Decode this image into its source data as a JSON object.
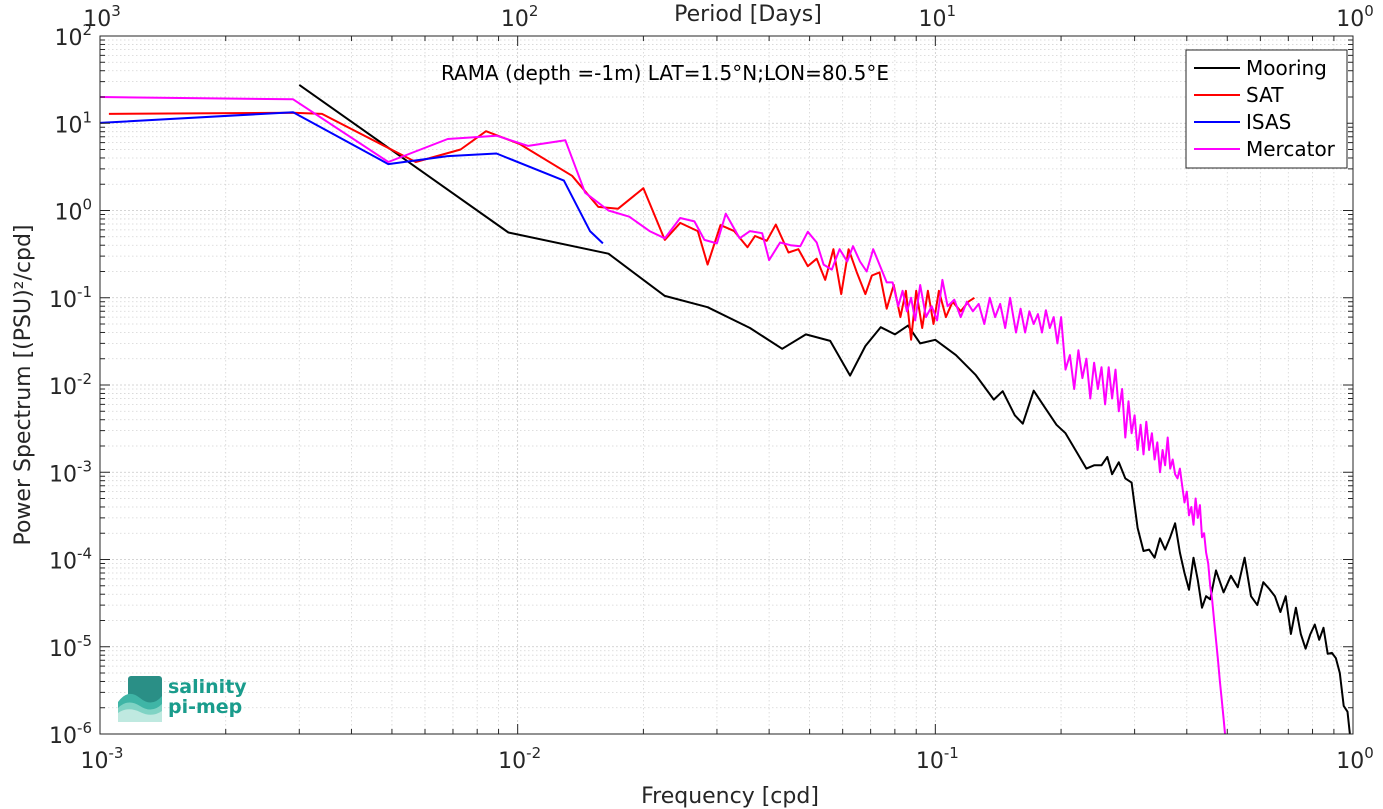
{
  "chart_data": {
    "type": "line",
    "title": "",
    "annotation": "RAMA (depth =-1m) LAT=1.5°N;LON=80.5°E",
    "xlabel": "Frequency [cpd]",
    "ylabel": "Power Spectrum [(PSU)²/cpd]",
    "top_xlabel": "Period [Days]",
    "x_scale": "log",
    "y_scale": "log",
    "xlim": [
      0.001,
      1
    ],
    "ylim": [
      1e-06,
      100
    ],
    "grid": true,
    "minor_grid": true,
    "legend_position": "top-right",
    "x_ticks": [
      {
        "v": 0.001,
        "base": "10",
        "exp": "-3"
      },
      {
        "v": 0.01,
        "base": "10",
        "exp": "-2"
      },
      {
        "v": 0.1,
        "base": "10",
        "exp": "-1"
      },
      {
        "v": 1,
        "base": "10",
        "exp": "0"
      }
    ],
    "top_ticks": [
      {
        "v": 0.001,
        "base": "10",
        "exp": "3"
      },
      {
        "v": 0.01,
        "base": "10",
        "exp": "2"
      },
      {
        "v": 0.1,
        "base": "10",
        "exp": "1"
      },
      {
        "v": 1,
        "base": "10",
        "exp": "0"
      }
    ],
    "y_ticks": [
      {
        "v": 100,
        "base": "10",
        "exp": "2"
      },
      {
        "v": 10,
        "base": "10",
        "exp": "1"
      },
      {
        "v": 1,
        "base": "10",
        "exp": "0"
      },
      {
        "v": 0.1,
        "base": "10",
        "exp": "-1"
      },
      {
        "v": 0.01,
        "base": "10",
        "exp": "-2"
      },
      {
        "v": 0.001,
        "base": "10",
        "exp": "-3"
      },
      {
        "v": 0.0001,
        "base": "10",
        "exp": "-4"
      },
      {
        "v": 1e-05,
        "base": "10",
        "exp": "-5"
      },
      {
        "v": 1e-06,
        "base": "10",
        "exp": "-6"
      }
    ],
    "series": [
      {
        "name": "Mooring",
        "color": "#000000",
        "points": [
          [
            0.003,
            27.5
          ],
          [
            0.0095,
            0.56
          ],
          [
            0.0165,
            0.32
          ],
          [
            0.0225,
            0.105
          ],
          [
            0.0285,
            0.078
          ],
          [
            0.036,
            0.045
          ],
          [
            0.043,
            0.026
          ],
          [
            0.049,
            0.038
          ],
          [
            0.056,
            0.032
          ],
          [
            0.0625,
            0.0128
          ],
          [
            0.068,
            0.028
          ],
          [
            0.074,
            0.046
          ],
          [
            0.08,
            0.038
          ],
          [
            0.086,
            0.048
          ],
          [
            0.092,
            0.03
          ],
          [
            0.1,
            0.033
          ],
          [
            0.112,
            0.022
          ],
          [
            0.125,
            0.013
          ],
          [
            0.138,
            0.0068
          ],
          [
            0.145,
            0.0085
          ],
          [
            0.155,
            0.0045
          ],
          [
            0.162,
            0.0036
          ],
          [
            0.172,
            0.0086
          ],
          [
            0.183,
            0.0055
          ],
          [
            0.195,
            0.0035
          ],
          [
            0.205,
            0.0028
          ],
          [
            0.218,
            0.0017
          ],
          [
            0.23,
            0.0011
          ],
          [
            0.24,
            0.0012
          ],
          [
            0.25,
            0.0012
          ],
          [
            0.258,
            0.0015
          ],
          [
            0.265,
            0.00095
          ],
          [
            0.275,
            0.0013
          ],
          [
            0.285,
            0.00085
          ],
          [
            0.295,
            0.00076
          ],
          [
            0.305,
            0.00023
          ],
          [
            0.315,
            0.000125
          ],
          [
            0.325,
            0.00013
          ],
          [
            0.335,
            0.000105
          ],
          [
            0.345,
            0.000175
          ],
          [
            0.355,
            0.00013
          ],
          [
            0.365,
            0.00018
          ],
          [
            0.375,
            0.00026
          ],
          [
            0.385,
            0.00012
          ],
          [
            0.395,
            7e-05
          ],
          [
            0.405,
            4.5e-05
          ],
          [
            0.415,
            0.000105
          ],
          [
            0.425,
            5.8e-05
          ],
          [
            0.435,
            2.8e-05
          ],
          [
            0.445,
            3.8e-05
          ],
          [
            0.455,
            3.5e-05
          ],
          [
            0.47,
            7.5e-05
          ],
          [
            0.49,
            4.2e-05
          ],
          [
            0.51,
            6.5e-05
          ],
          [
            0.53,
            4.8e-05
          ],
          [
            0.55,
            0.000105
          ],
          [
            0.57,
            3.8e-05
          ],
          [
            0.59,
            3e-05
          ],
          [
            0.61,
            5.5e-05
          ],
          [
            0.63,
            4.6e-05
          ],
          [
            0.65,
            3.8e-05
          ],
          [
            0.67,
            2.5e-05
          ],
          [
            0.69,
            3.8e-05
          ],
          [
            0.71,
            1.4e-05
          ],
          [
            0.73,
            2.8e-05
          ],
          [
            0.75,
            1.4e-05
          ],
          [
            0.77,
            9.5e-06
          ],
          [
            0.79,
            1.38e-05
          ],
          [
            0.81,
            1.8e-05
          ],
          [
            0.83,
            1.2e-05
          ],
          [
            0.85,
            1.65e-05
          ],
          [
            0.87,
            8.3e-06
          ],
          [
            0.89,
            8.5e-06
          ],
          [
            0.91,
            7.4e-06
          ],
          [
            0.93,
            5e-06
          ],
          [
            0.95,
            2.1e-06
          ],
          [
            0.97,
            1.8e-06
          ],
          [
            0.985,
            9e-07
          ]
        ]
      },
      {
        "name": "SAT",
        "color": "#ff0000",
        "points": [
          [
            0.00105,
            12.8
          ],
          [
            0.0029,
            13.2
          ],
          [
            0.0034,
            12.8
          ],
          [
            0.0049,
            5.2
          ],
          [
            0.0057,
            3.6
          ],
          [
            0.0073,
            5.0
          ],
          [
            0.0084,
            8.1
          ],
          [
            0.0101,
            5.8
          ],
          [
            0.0135,
            2.5
          ],
          [
            0.0156,
            1.1
          ],
          [
            0.0174,
            1.05
          ],
          [
            0.02,
            1.8
          ],
          [
            0.0225,
            0.46
          ],
          [
            0.0245,
            0.72
          ],
          [
            0.027,
            0.58
          ],
          [
            0.0285,
            0.24
          ],
          [
            0.0306,
            0.68
          ],
          [
            0.033,
            0.58
          ],
          [
            0.0355,
            0.38
          ],
          [
            0.037,
            0.51
          ],
          [
            0.0395,
            0.45
          ],
          [
            0.0415,
            0.69
          ],
          [
            0.0445,
            0.33
          ],
          [
            0.047,
            0.36
          ],
          [
            0.0495,
            0.23
          ],
          [
            0.052,
            0.28
          ],
          [
            0.0545,
            0.16
          ],
          [
            0.057,
            0.36
          ],
          [
            0.0595,
            0.11
          ],
          [
            0.062,
            0.36
          ],
          [
            0.065,
            0.19
          ],
          [
            0.068,
            0.11
          ],
          [
            0.0705,
            0.18
          ],
          [
            0.0735,
            0.195
          ],
          [
            0.0765,
            0.075
          ],
          [
            0.0795,
            0.14
          ],
          [
            0.0825,
            0.06
          ],
          [
            0.085,
            0.12
          ],
          [
            0.0875,
            0.033
          ],
          [
            0.09,
            0.12
          ],
          [
            0.093,
            0.045
          ],
          [
            0.096,
            0.12
          ],
          [
            0.099,
            0.05
          ],
          [
            0.102,
            0.12
          ],
          [
            0.106,
            0.06
          ],
          [
            0.11,
            0.09
          ],
          [
            0.115,
            0.07
          ],
          [
            0.12,
            0.09
          ],
          [
            0.124,
            0.1
          ]
        ]
      },
      {
        "name": "ISAS",
        "color": "#0000ff",
        "points": [
          [
            0.001,
            10.1
          ],
          [
            0.0029,
            13.4
          ],
          [
            0.0049,
            3.4
          ],
          [
            0.0068,
            4.2
          ],
          [
            0.0089,
            4.5
          ],
          [
            0.0129,
            2.2
          ],
          [
            0.0149,
            0.58
          ],
          [
            0.016,
            0.42
          ]
        ]
      },
      {
        "name": "Mercator",
        "color": "#ff00ff",
        "points": [
          [
            0.001,
            20.0
          ],
          [
            0.0029,
            18.8
          ],
          [
            0.0049,
            3.6
          ],
          [
            0.0068,
            6.6
          ],
          [
            0.0089,
            7.2
          ],
          [
            0.0106,
            5.5
          ],
          [
            0.013,
            6.4
          ],
          [
            0.0145,
            1.6
          ],
          [
            0.0165,
            1.0
          ],
          [
            0.0185,
            0.85
          ],
          [
            0.0207,
            0.58
          ],
          [
            0.0225,
            0.48
          ],
          [
            0.0245,
            0.82
          ],
          [
            0.0265,
            0.75
          ],
          [
            0.028,
            0.46
          ],
          [
            0.03,
            0.42
          ],
          [
            0.0315,
            0.92
          ],
          [
            0.034,
            0.48
          ],
          [
            0.036,
            0.58
          ],
          [
            0.0385,
            0.55
          ],
          [
            0.04,
            0.27
          ],
          [
            0.0425,
            0.43
          ],
          [
            0.045,
            0.4
          ],
          [
            0.0475,
            0.39
          ],
          [
            0.0495,
            0.57
          ],
          [
            0.052,
            0.43
          ],
          [
            0.054,
            0.24
          ],
          [
            0.0565,
            0.21
          ],
          [
            0.059,
            0.36
          ],
          [
            0.0615,
            0.26
          ],
          [
            0.0635,
            0.39
          ],
          [
            0.066,
            0.26
          ],
          [
            0.0685,
            0.2
          ],
          [
            0.071,
            0.36
          ],
          [
            0.0735,
            0.24
          ],
          [
            0.0765,
            0.15
          ],
          [
            0.079,
            0.15
          ],
          [
            0.0815,
            0.08
          ],
          [
            0.0835,
            0.12
          ],
          [
            0.0855,
            0.07
          ],
          [
            0.0875,
            0.1
          ],
          [
            0.0895,
            0.055
          ],
          [
            0.092,
            0.14
          ],
          [
            0.095,
            0.06
          ],
          [
            0.098,
            0.08
          ],
          [
            0.101,
            0.055
          ],
          [
            0.104,
            0.16
          ],
          [
            0.107,
            0.08
          ],
          [
            0.111,
            0.095
          ],
          [
            0.115,
            0.06
          ],
          [
            0.119,
            0.09
          ],
          [
            0.123,
            0.07
          ],
          [
            0.127,
            0.085
          ],
          [
            0.131,
            0.05
          ],
          [
            0.135,
            0.1
          ],
          [
            0.139,
            0.06
          ],
          [
            0.143,
            0.085
          ],
          [
            0.147,
            0.045
          ],
          [
            0.151,
            0.1
          ],
          [
            0.156,
            0.04
          ],
          [
            0.16,
            0.075
          ],
          [
            0.164,
            0.04
          ],
          [
            0.168,
            0.07
          ],
          [
            0.172,
            0.05
          ],
          [
            0.176,
            0.065
          ],
          [
            0.18,
            0.04
          ],
          [
            0.184,
            0.072
          ],
          [
            0.188,
            0.045
          ],
          [
            0.192,
            0.06
          ],
          [
            0.196,
            0.03
          ],
          [
            0.2,
            0.06
          ],
          [
            0.205,
            0.015
          ],
          [
            0.21,
            0.022
          ],
          [
            0.215,
            0.009
          ],
          [
            0.22,
            0.025
          ],
          [
            0.225,
            0.012
          ],
          [
            0.23,
            0.02
          ],
          [
            0.235,
            0.007
          ],
          [
            0.24,
            0.018
          ],
          [
            0.245,
            0.009
          ],
          [
            0.25,
            0.016
          ],
          [
            0.255,
            0.006
          ],
          [
            0.26,
            0.016
          ],
          [
            0.265,
            0.007
          ],
          [
            0.27,
            0.015
          ],
          [
            0.275,
            0.005
          ],
          [
            0.28,
            0.009
          ],
          [
            0.285,
            0.0025
          ],
          [
            0.29,
            0.0065
          ],
          [
            0.295,
            0.0028
          ],
          [
            0.3,
            0.0045
          ],
          [
            0.305,
            0.0018
          ],
          [
            0.31,
            0.0035
          ],
          [
            0.315,
            0.0016
          ],
          [
            0.32,
            0.0038
          ],
          [
            0.325,
            0.0018
          ],
          [
            0.33,
            0.0028
          ],
          [
            0.335,
            0.0014
          ],
          [
            0.34,
            0.0022
          ],
          [
            0.345,
            0.001
          ],
          [
            0.35,
            0.0018
          ],
          [
            0.355,
            0.0012
          ],
          [
            0.36,
            0.0025
          ],
          [
            0.365,
            0.0011
          ],
          [
            0.37,
            0.0014
          ],
          [
            0.375,
            0.00095
          ],
          [
            0.38,
            0.00085
          ],
          [
            0.385,
            0.0011
          ],
          [
            0.39,
            0.0007
          ],
          [
            0.395,
            0.00045
          ],
          [
            0.4,
            0.0006
          ],
          [
            0.405,
            0.00032
          ],
          [
            0.41,
            0.0004
          ],
          [
            0.415,
            0.00025
          ],
          [
            0.42,
            0.0005
          ],
          [
            0.425,
            0.0003
          ],
          [
            0.43,
            0.00042
          ],
          [
            0.435,
            0.00018
          ],
          [
            0.44,
            0.0002
          ],
          [
            0.445,
            0.00012
          ],
          [
            0.45,
            9e-05
          ],
          [
            0.455,
            5e-05
          ],
          [
            0.46,
            3.5e-05
          ],
          [
            0.465,
            2e-05
          ],
          [
            0.47,
            1.2e-05
          ],
          [
            0.475,
            7e-06
          ],
          [
            0.48,
            4e-06
          ],
          [
            0.485,
            2.5e-06
          ],
          [
            0.49,
            1.5e-06
          ],
          [
            0.495,
            9e-07
          ]
        ]
      }
    ]
  },
  "logo": {
    "line1": "salinity",
    "line2": "pi-mep",
    "icon": "salinity-waves-logo",
    "color": "#1a9c8c"
  }
}
